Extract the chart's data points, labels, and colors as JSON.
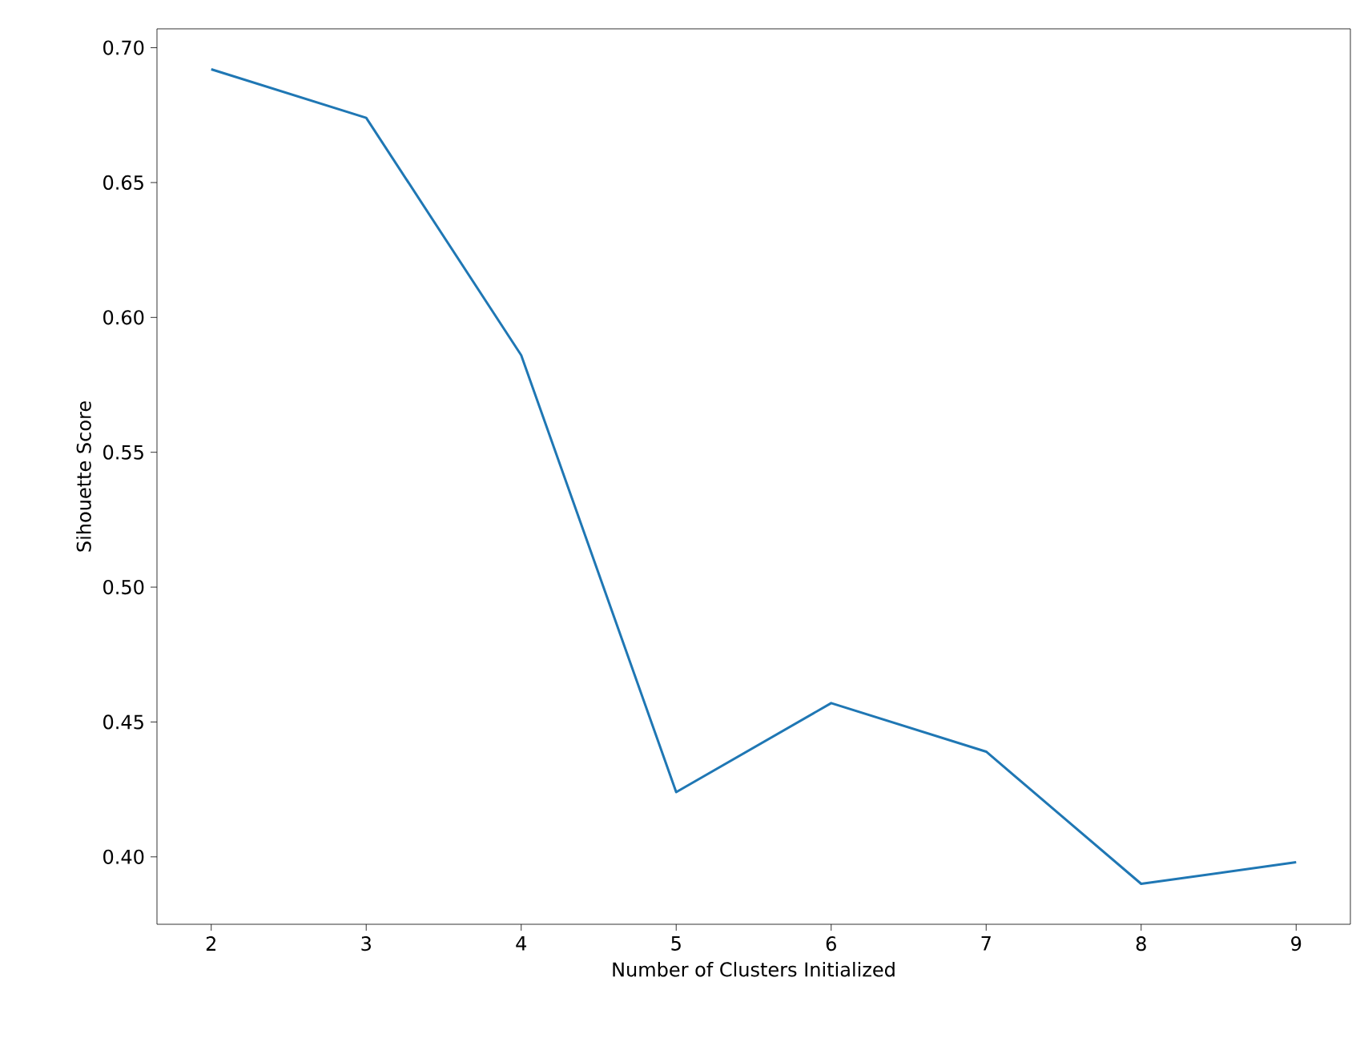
{
  "chart_data": {
    "type": "line",
    "xlabel": "Number of Clusters Initialized",
    "ylabel": "Sihouette Score",
    "x": [
      2,
      3,
      4,
      5,
      6,
      7,
      8,
      9
    ],
    "series": [
      {
        "color": "#1f77b4",
        "values": [
          0.692,
          0.674,
          0.586,
          0.424,
          0.457,
          0.439,
          0.39,
          0.398
        ]
      }
    ],
    "xlim": [
      1.65,
      9.35
    ],
    "ylim": [
      0.375,
      0.707
    ],
    "xticks": [
      2,
      3,
      4,
      5,
      6,
      7,
      8,
      9
    ],
    "yticks": [
      {
        "value": 0.4,
        "label": "0.40"
      },
      {
        "value": 0.45,
        "label": "0.45"
      },
      {
        "value": 0.5,
        "label": "0.50"
      },
      {
        "value": 0.55,
        "label": "0.55"
      },
      {
        "value": 0.6,
        "label": "0.60"
      },
      {
        "value": 0.65,
        "label": "0.65"
      },
      {
        "value": 0.7,
        "label": "0.70"
      }
    ],
    "grid": false,
    "marker": "none",
    "line_style": "solid"
  }
}
